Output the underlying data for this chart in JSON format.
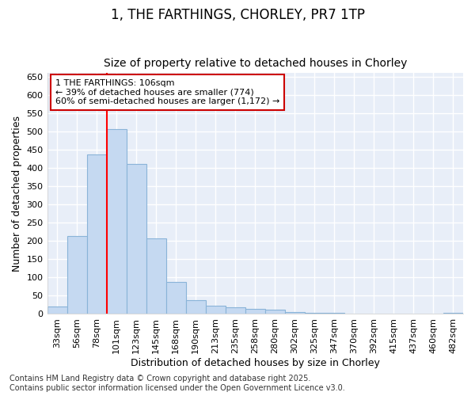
{
  "title": "1, THE FARTHINGS, CHORLEY, PR7 1TP",
  "subtitle": "Size of property relative to detached houses in Chorley",
  "xlabel": "Distribution of detached houses by size in Chorley",
  "ylabel": "Number of detached properties",
  "categories": [
    "33sqm",
    "56sqm",
    "78sqm",
    "101sqm",
    "123sqm",
    "145sqm",
    "168sqm",
    "190sqm",
    "213sqm",
    "235sqm",
    "258sqm",
    "280sqm",
    "302sqm",
    "325sqm",
    "347sqm",
    "370sqm",
    "392sqm",
    "415sqm",
    "437sqm",
    "460sqm",
    "482sqm"
  ],
  "values": [
    20,
    213,
    437,
    507,
    412,
    207,
    87,
    38,
    22,
    18,
    15,
    12,
    5,
    4,
    3,
    2,
    1,
    1,
    0,
    1,
    3
  ],
  "bar_color": "#c5d9f1",
  "bar_edge_color": "#8ab4d8",
  "red_line_index": 3,
  "annotation_text": "1 THE FARTHINGS: 106sqm\n← 39% of detached houses are smaller (774)\n60% of semi-detached houses are larger (1,172) →",
  "annotation_box_color": "#ffffff",
  "annotation_box_edge": "#cc0000",
  "ylim": [
    0,
    660
  ],
  "yticks": [
    0,
    50,
    100,
    150,
    200,
    250,
    300,
    350,
    400,
    450,
    500,
    550,
    600,
    650
  ],
  "footer_line1": "Contains HM Land Registry data © Crown copyright and database right 2025.",
  "footer_line2": "Contains public sector information licensed under the Open Government Licence v3.0.",
  "bg_color": "#ffffff",
  "plot_bg_color": "#e8eef8",
  "grid_color": "#ffffff",
  "title_fontsize": 12,
  "subtitle_fontsize": 10,
  "axis_label_fontsize": 9,
  "tick_fontsize": 8,
  "footer_fontsize": 7,
  "annotation_fontsize": 8
}
